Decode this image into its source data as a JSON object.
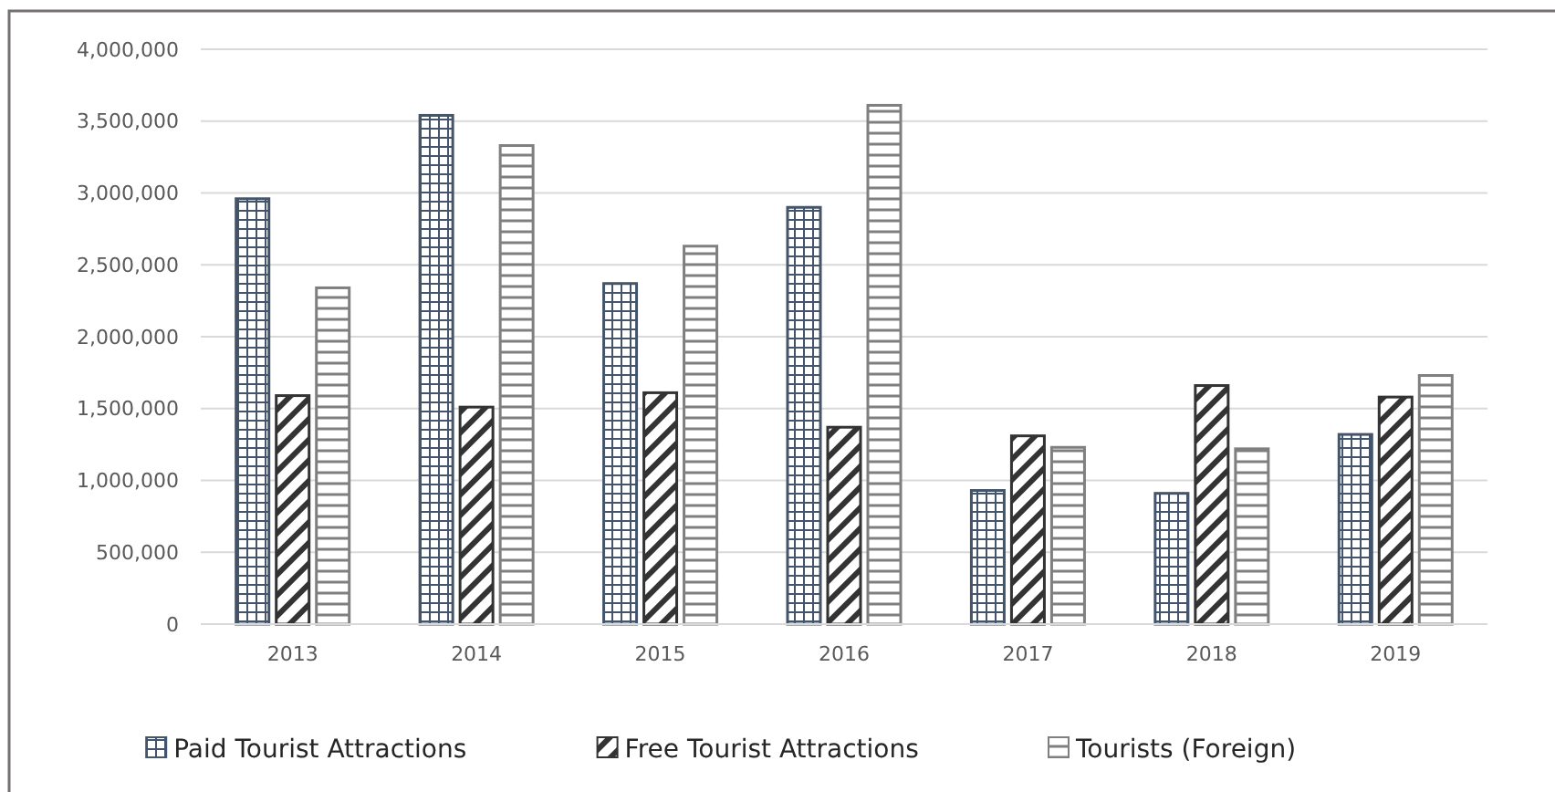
{
  "chart_data": {
    "type": "bar",
    "categories": [
      "2013",
      "2014",
      "2015",
      "2016",
      "2017",
      "2018",
      "2019"
    ],
    "series": [
      {
        "name": "Paid Tourist Attractions",
        "color": "#44546a",
        "values": [
          2960000,
          3540000,
          2370000,
          2900000,
          930000,
          910000,
          1320000
        ]
      },
      {
        "name": "Free Tourist Attractions",
        "color": "#333333",
        "values": [
          1590000,
          1510000,
          1610000,
          1370000,
          1310000,
          1660000,
          1580000
        ]
      },
      {
        "name": "Tourists (Foreign)",
        "color": "#7f7f7f",
        "values": [
          2340000,
          3330000,
          2630000,
          3610000,
          1230000,
          1220000,
          1730000
        ]
      }
    ],
    "ylim": [
      0,
      4000000
    ],
    "yticks": [
      {
        "value": 0,
        "label": "0"
      },
      {
        "value": 500000,
        "label": "500,000"
      },
      {
        "value": 1000000,
        "label": "1,000,000"
      },
      {
        "value": 1500000,
        "label": "1,500,000"
      },
      {
        "value": 2000000,
        "label": "2,000,000"
      },
      {
        "value": 2500000,
        "label": "2,500,000"
      },
      {
        "value": 3000000,
        "label": "3,000,000"
      },
      {
        "value": 3500000,
        "label": "3,500,000"
      },
      {
        "value": 4000000,
        "label": "4,000,000"
      }
    ],
    "grid": "y",
    "legend": "bottom"
  }
}
